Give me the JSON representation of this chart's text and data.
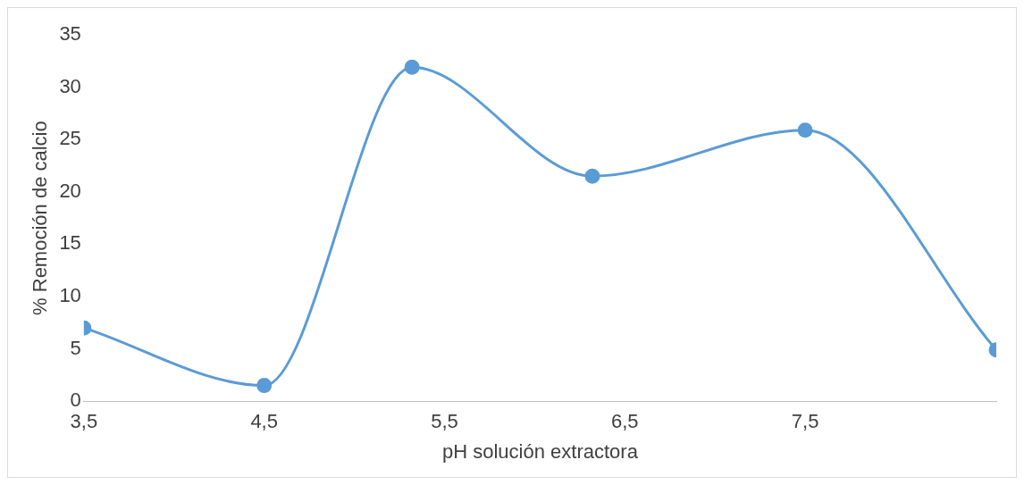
{
  "chart_data": {
    "type": "line",
    "xlabel": "pH solución extractora",
    "ylabel": "% Remoción de calcio",
    "x": [
      3.5,
      4.5,
      5.32,
      6.32,
      7.5,
      8.56
    ],
    "series": [
      {
        "color": "#5b9bd5",
        "values": [
          7.0,
          1.5,
          31.9,
          21.5,
          25.9,
          4.9
        ]
      }
    ],
    "xlim": [
      3.5,
      8.56
    ],
    "xticks": [
      {
        "value": 3.5,
        "label": "3,5"
      },
      {
        "value": 4.5,
        "label": "4,5"
      },
      {
        "value": 5.5,
        "label": "5,5"
      },
      {
        "value": 6.5,
        "label": "6,5"
      },
      {
        "value": 7.5,
        "label": "7,5"
      }
    ],
    "ylim": [
      0,
      35
    ],
    "yticks": [
      0,
      5,
      10,
      15,
      20,
      25,
      30,
      35
    ],
    "grid": false,
    "legend": false,
    "marker": "circle"
  }
}
